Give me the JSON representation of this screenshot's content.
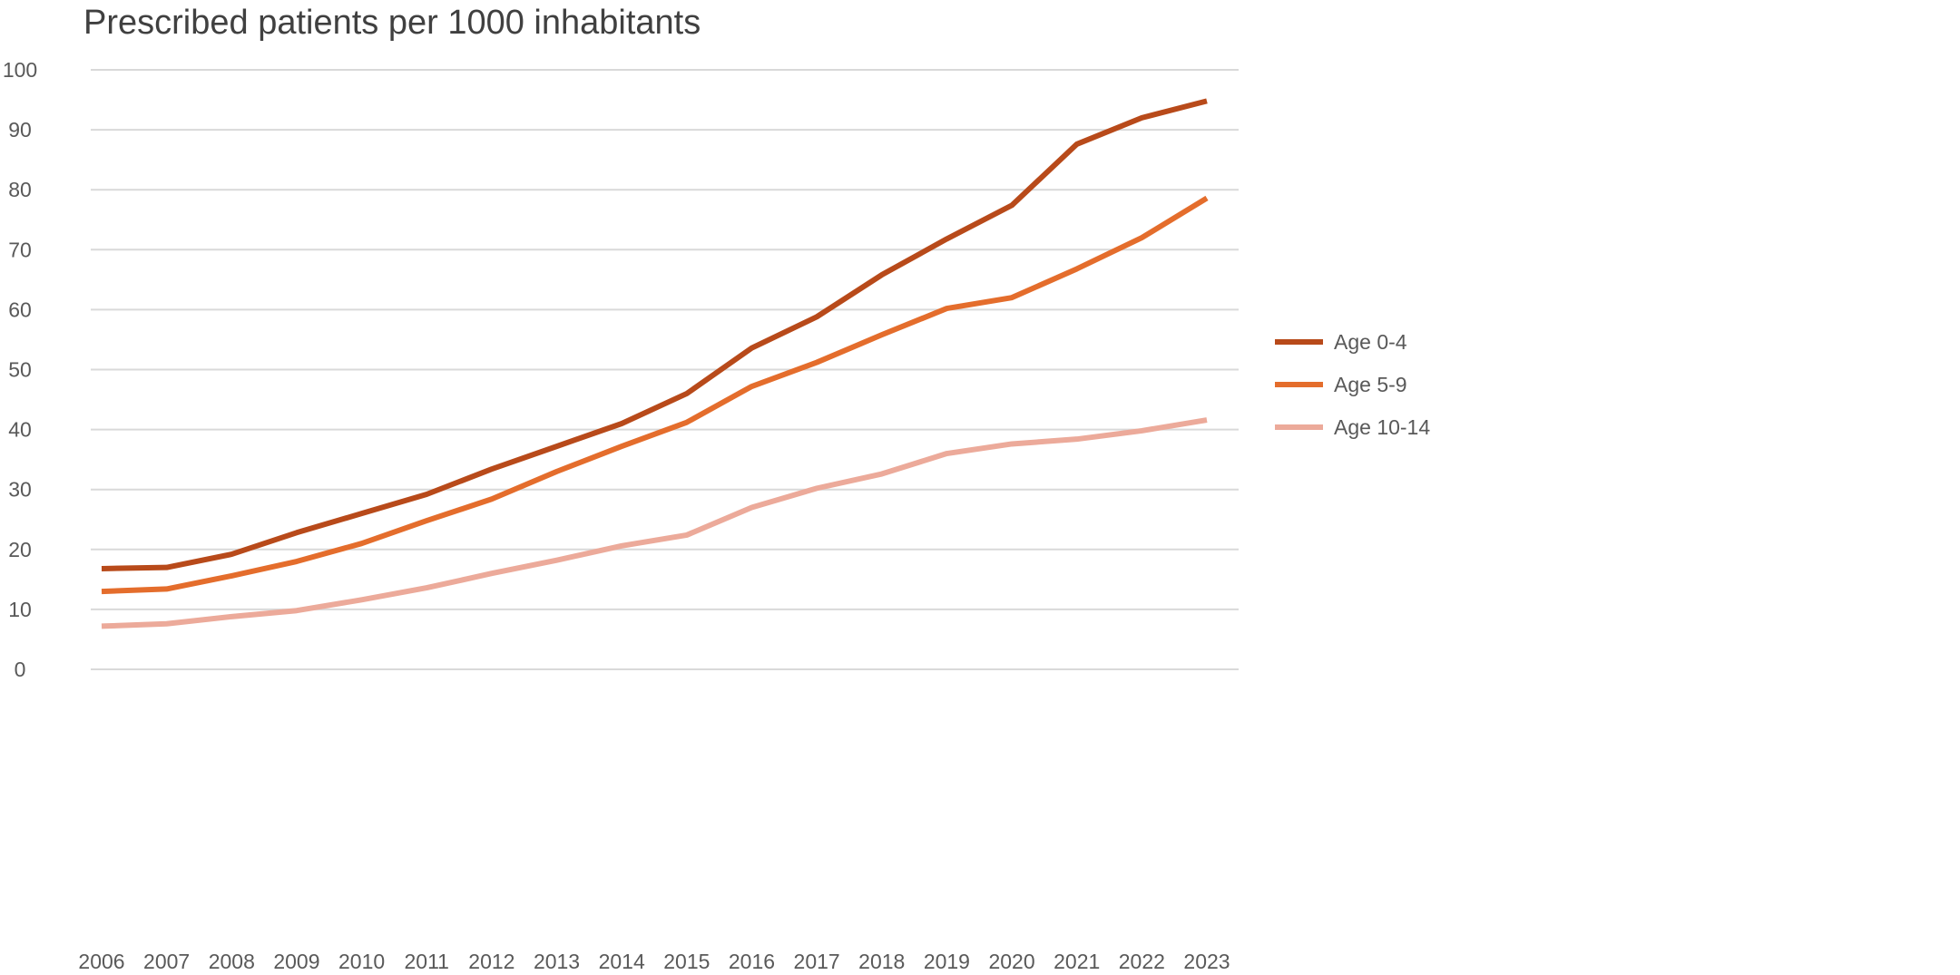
{
  "chart_data": {
    "type": "line",
    "title": "Prescribed patients per 1000 inhabitants",
    "xlabel": "",
    "ylabel": "",
    "x": [
      "2006",
      "2007",
      "2008",
      "2009",
      "2010",
      "2011",
      "2012",
      "2013",
      "2014",
      "2015",
      "2016",
      "2017",
      "2018",
      "2019",
      "2020",
      "2021",
      "2022",
      "2023"
    ],
    "ylim": [
      0,
      100
    ],
    "yticks": [
      0,
      10,
      20,
      30,
      40,
      50,
      60,
      70,
      80,
      90,
      100
    ],
    "grid": true,
    "legend_position": "right",
    "series": [
      {
        "name": "Age 0-4",
        "color": "#b84a1a",
        "values": [
          16.8,
          17.0,
          19.2,
          22.8,
          26.0,
          29.2,
          33.4,
          37.2,
          41.0,
          46.0,
          53.6,
          58.8,
          65.8,
          71.8,
          77.4,
          87.6,
          92.0,
          94.8
        ]
      },
      {
        "name": "Age 5-9",
        "color": "#e46d2c",
        "values": [
          13.0,
          13.4,
          15.6,
          18.0,
          21.0,
          24.8,
          28.4,
          33.0,
          37.2,
          41.2,
          47.2,
          51.2,
          55.8,
          60.2,
          62.0,
          66.8,
          72.0,
          78.6
        ]
      },
      {
        "name": "Age 10-14",
        "color": "#ecaa9a",
        "values": [
          7.2,
          7.6,
          8.8,
          9.8,
          11.6,
          13.6,
          16.0,
          18.2,
          20.6,
          22.4,
          27.0,
          30.2,
          32.6,
          36.0,
          37.6,
          38.4,
          39.8,
          41.6
        ]
      }
    ]
  }
}
